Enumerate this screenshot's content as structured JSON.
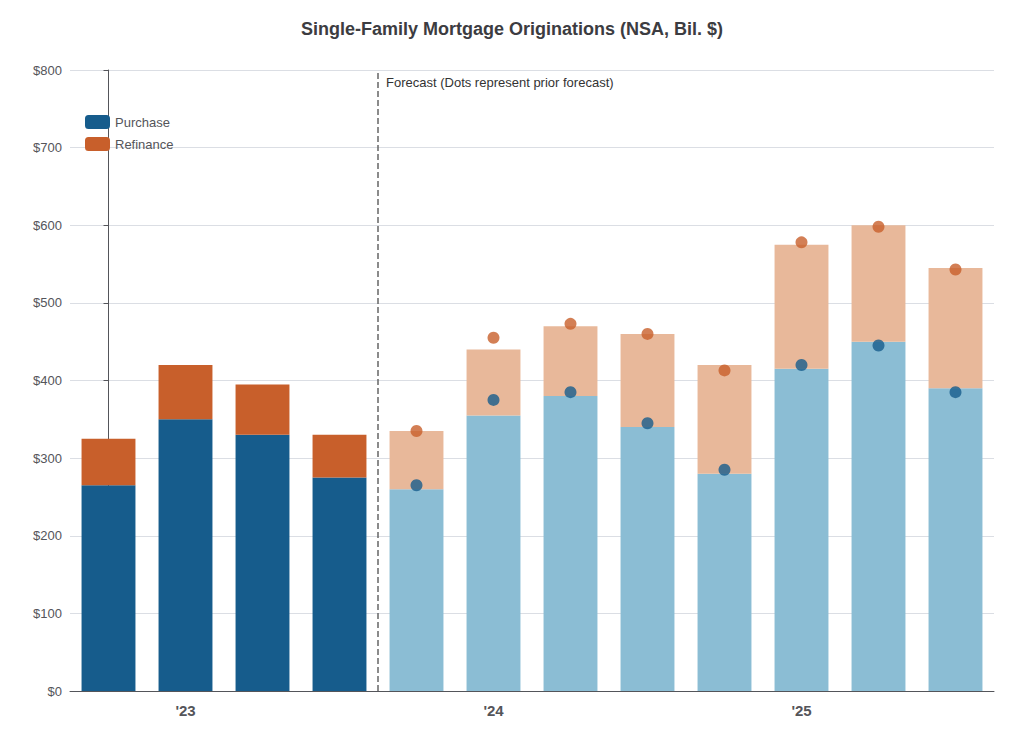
{
  "chart_data": {
    "type": "bar",
    "title": "Single-Family Mortgage Originations (NSA, Bil. $)",
    "categories": [
      null,
      "'23",
      null,
      null,
      null,
      "'24",
      null,
      null,
      null,
      "'25",
      null,
      null
    ],
    "series": [
      {
        "name": "Purchase",
        "type": "bar",
        "color": "#165c8c",
        "colors": [
          "#165c8c",
          "#165c8c",
          "#165c8c",
          "#165c8c",
          "#8bbdd4",
          "#8bbdd4",
          "#8bbdd4",
          "#8bbdd4",
          "#8bbdd4",
          "#8bbdd4",
          "#8bbdd4",
          "#8bbdd4"
        ],
        "values": [
          265,
          350,
          330,
          275,
          260,
          355,
          380,
          340,
          280,
          415,
          450,
          390
        ]
      },
      {
        "name": "Refinance",
        "type": "bar",
        "color": "#c85f2b",
        "colors": [
          "#c85f2b",
          "#c85f2b",
          "#c85f2b",
          "#c85f2b",
          "#e8b89a",
          "#e8b89a",
          "#e8b89a",
          "#e8b89a",
          "#e8b89a",
          "#e8b89a",
          "#e8b89a",
          "#e8b89a"
        ],
        "values": [
          60,
          70,
          65,
          55,
          75,
          85,
          90,
          120,
          140,
          160,
          150,
          155
        ]
      },
      {
        "type": "scatter",
        "color": "#165c8c",
        "values": [
          null,
          null,
          null,
          null,
          265,
          375,
          385,
          345,
          285,
          420,
          445,
          385
        ]
      },
      {
        "type": "scatter",
        "color": "#c85f2b",
        "values": [
          null,
          null,
          null,
          null,
          335,
          455,
          473,
          460,
          413,
          578,
          598,
          543
        ]
      }
    ],
    "stacked": true,
    "annotation": "Forecast (Dots represent prior forecast)",
    "ylim": [
      0,
      800
    ],
    "yticks": [
      {
        "value": 0,
        "label": "$0"
      },
      {
        "value": 100,
        "label": "$100"
      },
      {
        "value": 200,
        "label": "$200"
      },
      {
        "value": 300,
        "label": "$300"
      },
      {
        "value": 400,
        "label": "$400"
      },
      {
        "value": 500,
        "label": "$500"
      },
      {
        "value": 600,
        "label": "$600"
      },
      {
        "value": 700,
        "label": "$700"
      },
      {
        "value": 800,
        "label": "$800"
      }
    ],
    "grid": true,
    "legend": "upper left"
  }
}
